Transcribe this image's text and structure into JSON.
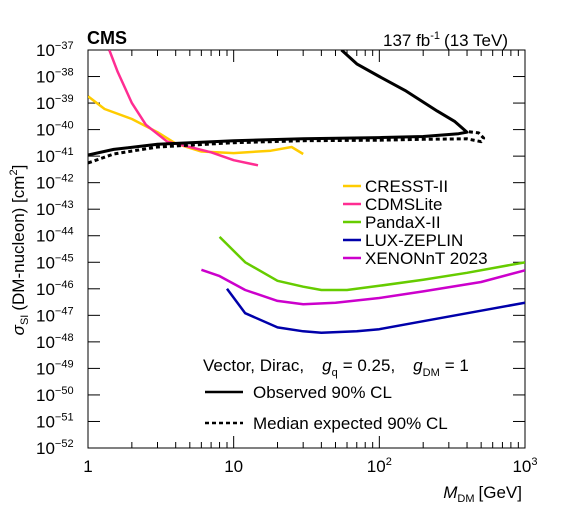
{
  "header": {
    "experiment": "CMS",
    "lumi_value": "137 fb",
    "lumi_exp": "-1",
    "energy": "(13 TeV)"
  },
  "chart_data": {
    "type": "line",
    "x_scale": "log",
    "y_scale": "log",
    "xlim": [
      1,
      1000
    ],
    "ylim": [
      1e-52,
      1e-37
    ],
    "xlabel": {
      "main": "M",
      "sub": "DM",
      "unit": "[GeV]"
    },
    "ylabel": {
      "main": "σ",
      "sub": "SI",
      "rest": "(DM-nucleon) [cm",
      "sup": "2",
      "close": "]"
    },
    "x_ticks": [
      {
        "value": 1,
        "base": "1",
        "exp": ""
      },
      {
        "value": 10,
        "base": "10",
        "exp": ""
      },
      {
        "value": 100,
        "base": "10",
        "exp": "2"
      },
      {
        "value": 1000,
        "base": "10",
        "exp": "3"
      }
    ],
    "y_ticks": [
      {
        "value": -37,
        "base": "10",
        "exp": "−37"
      },
      {
        "value": -38,
        "base": "10",
        "exp": "−38"
      },
      {
        "value": -39,
        "base": "10",
        "exp": "−39"
      },
      {
        "value": -40,
        "base": "10",
        "exp": "−40"
      },
      {
        "value": -41,
        "base": "10",
        "exp": "−41"
      },
      {
        "value": -42,
        "base": "10",
        "exp": "−42"
      },
      {
        "value": -43,
        "base": "10",
        "exp": "−43"
      },
      {
        "value": -44,
        "base": "10",
        "exp": "−44"
      },
      {
        "value": -45,
        "base": "10",
        "exp": "−45"
      },
      {
        "value": -46,
        "base": "10",
        "exp": "−46"
      },
      {
        "value": -47,
        "base": "10",
        "exp": "−47"
      },
      {
        "value": -48,
        "base": "10",
        "exp": "−48"
      },
      {
        "value": -49,
        "base": "10",
        "exp": "−49"
      },
      {
        "value": -50,
        "base": "10",
        "exp": "−50"
      },
      {
        "value": -51,
        "base": "10",
        "exp": "−51"
      },
      {
        "value": -52,
        "base": "10",
        "exp": "−52"
      }
    ],
    "series": [
      {
        "name": "CRESST-II",
        "color": "#ffcc00",
        "style": "solid",
        "points": [
          [
            1,
            1.8e-39
          ],
          [
            1.3,
            6e-40
          ],
          [
            2,
            2.5e-40
          ],
          [
            3,
            8e-41
          ],
          [
            4,
            3e-41
          ],
          [
            6,
            1.5e-41
          ],
          [
            10,
            1.3e-41
          ],
          [
            18,
            1.6e-41
          ],
          [
            25,
            2.2e-41
          ],
          [
            30,
            1.2e-41
          ]
        ]
      },
      {
        "name": "CDMSLite",
        "color": "#ff2d92",
        "style": "solid",
        "points": [
          [
            1.4,
            1e-37
          ],
          [
            1.6,
            1.5e-38
          ],
          [
            2,
            1e-39
          ],
          [
            2.5,
            1.5e-40
          ],
          [
            3.5,
            3.5e-41
          ],
          [
            5,
            2.2e-41
          ],
          [
            7,
            1.4e-41
          ],
          [
            10,
            7e-42
          ],
          [
            14.7,
            4.5e-42
          ]
        ]
      },
      {
        "name": "PandaX-II",
        "color": "#66cc00",
        "style": "solid",
        "points": [
          [
            8,
            9e-45
          ],
          [
            12,
            1e-45
          ],
          [
            20,
            2e-46
          ],
          [
            30,
            1.2e-46
          ],
          [
            40,
            9e-47
          ],
          [
            60,
            9e-47
          ],
          [
            100,
            1.3e-46
          ],
          [
            200,
            2.2e-46
          ],
          [
            400,
            4e-46
          ],
          [
            1000,
            1e-45
          ]
        ]
      },
      {
        "name": "LUX-ZEPLIN",
        "color": "#0000aa",
        "style": "solid",
        "points": [
          [
            9,
            1e-46
          ],
          [
            12,
            1.2e-47
          ],
          [
            20,
            3.5e-48
          ],
          [
            30,
            2.5e-48
          ],
          [
            40,
            2.2e-48
          ],
          [
            70,
            2.5e-48
          ],
          [
            100,
            3e-48
          ],
          [
            200,
            6e-48
          ],
          [
            500,
            1.5e-47
          ],
          [
            1000,
            3e-47
          ]
        ]
      },
      {
        "name": "XENONnT 2023",
        "color": "#cc00cc",
        "style": "solid",
        "points": [
          [
            6,
            5.2e-46
          ],
          [
            8,
            3e-46
          ],
          [
            12,
            9e-47
          ],
          [
            20,
            3.5e-47
          ],
          [
            30,
            2.6e-47
          ],
          [
            50,
            3e-47
          ],
          [
            100,
            4.5e-47
          ],
          [
            200,
            8e-47
          ],
          [
            500,
            1.8e-46
          ],
          [
            1000,
            5e-46
          ]
        ]
      },
      {
        "name": "Observed 90% CL",
        "color": "#000000",
        "style": "solid",
        "width": 3,
        "points": [
          [
            1,
            1.1e-41
          ],
          [
            1.5,
            1.8e-41
          ],
          [
            3,
            2.8e-41
          ],
          [
            10,
            3.8e-41
          ],
          [
            30,
            4.5e-41
          ],
          [
            100,
            5e-41
          ],
          [
            200,
            5.5e-41
          ],
          [
            350,
            7e-41
          ],
          [
            400,
            8e-41
          ],
          [
            330,
            2e-40
          ],
          [
            250,
            5e-40
          ],
          [
            150,
            3e-39
          ],
          [
            100,
            1e-38
          ],
          [
            70,
            3e-38
          ],
          [
            55,
            1e-37
          ]
        ]
      },
      {
        "name": "Median expected 90% CL",
        "color": "#000000",
        "style": "dashed",
        "width": 3,
        "points": [
          [
            1,
            5.5e-42
          ],
          [
            1.5,
            1.2e-41
          ],
          [
            3,
            2.2e-41
          ],
          [
            10,
            3.2e-41
          ],
          [
            30,
            3.8e-41
          ],
          [
            100,
            4e-41
          ],
          [
            200,
            4.3e-41
          ],
          [
            400,
            4.5e-41
          ],
          [
            500,
            3.5e-41
          ],
          [
            520,
            4.8e-41
          ],
          [
            480,
            7.5e-41
          ],
          [
            400,
            8.5e-41
          ]
        ]
      }
    ]
  },
  "legend": [
    {
      "label": "CRESST-II",
      "color": "#ffcc00"
    },
    {
      "label": "CDMSLite",
      "color": "#ff2d92"
    },
    {
      "label": "PandaX-II",
      "color": "#66cc00"
    },
    {
      "label": "LUX-ZEPLIN",
      "color": "#0000aa"
    },
    {
      "label": "XENONnT 2023",
      "color": "#cc00cc"
    }
  ],
  "model_text": {
    "prefix": "Vector, Dirac,",
    "gq_main": "g",
    "gq_sub": "q",
    "gq_val": "= 0.25,",
    "gdm_main": "g",
    "gdm_sub": "DM",
    "gdm_val": "= 1"
  },
  "legend2": {
    "observed": "Observed 90% CL",
    "expected": "Median expected 90% CL"
  }
}
